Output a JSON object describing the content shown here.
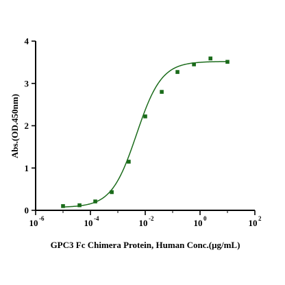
{
  "chart_data": {
    "type": "scatter",
    "title": "",
    "xlabel": "GPC3 Fc Chimera Protein, Human Conc.(μg/mL)",
    "ylabel": "Abs.(OD.450nm)",
    "x_scale": "log10",
    "xlim": [
      1e-06,
      100
    ],
    "ylim": [
      0,
      4
    ],
    "x_tick_labels": [
      {
        "base": "10",
        "exp": "-6",
        "value": 1e-06
      },
      {
        "base": "10",
        "exp": "-4",
        "value": 0.0001
      },
      {
        "base": "10",
        "exp": "-2",
        "value": 0.01
      },
      {
        "base": "10",
        "exp": "0",
        "value": 1
      },
      {
        "base": "10",
        "exp": "2",
        "value": 100
      }
    ],
    "y_ticks": [
      "0",
      "1",
      "2",
      "3",
      "4"
    ],
    "grid": false,
    "legend": "none",
    "marker_color": "#1a6b1a",
    "line_color": "#1a6b1a",
    "series": [
      {
        "x": [
          1e-05,
          4e-05,
          0.00015,
          0.0006,
          0.0025,
          0.01,
          0.04,
          0.15,
          0.6,
          2.4,
          10
        ],
        "y": [
          0.1,
          0.12,
          0.21,
          0.43,
          1.15,
          2.22,
          2.8,
          3.27,
          3.45,
          3.59,
          3.51
        ]
      }
    ],
    "fit": {
      "type": "4PL",
      "bottom": 0.07,
      "top": 3.52,
      "ec50": 0.0048,
      "hill": 0.95
    }
  }
}
